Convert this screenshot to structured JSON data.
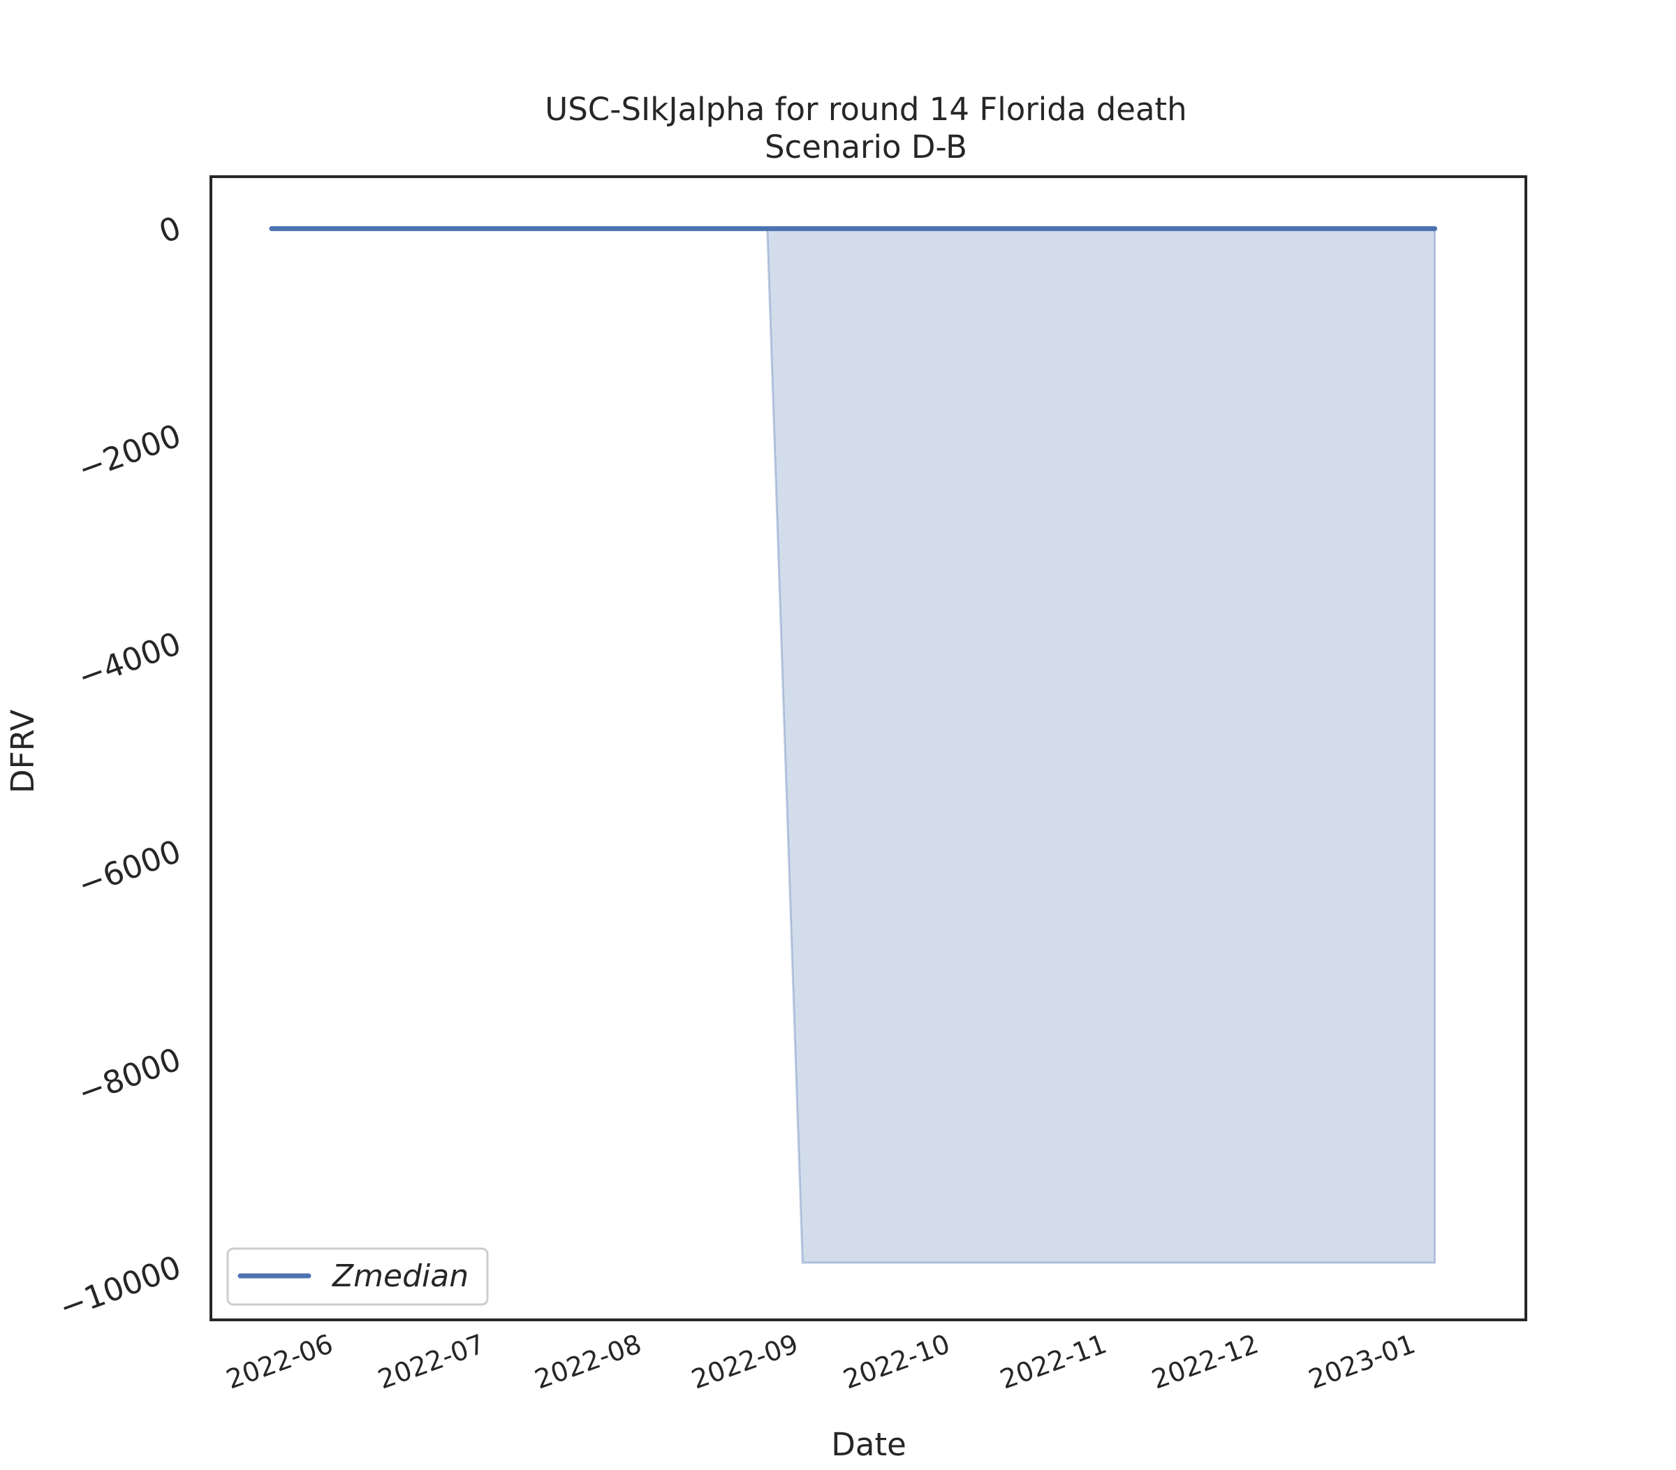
{
  "chart_data": {
    "type": "area",
    "title": "USC-SIkJalpha for round 14 Florida death",
    "subtitle": "Scenario D-B",
    "xlabel": "Date",
    "ylabel": "DFRV",
    "xlim": [
      "2022-05-10",
      "2023-01-25"
    ],
    "ylim": [
      -10500,
      500
    ],
    "x_ticks": [
      "2022-06",
      "2022-07",
      "2022-08",
      "2022-09",
      "2022-10",
      "2022-11",
      "2022-12",
      "2023-01"
    ],
    "x_tick_dates": [
      "2022-06-01",
      "2022-07-01",
      "2022-08-01",
      "2022-09-01",
      "2022-10-01",
      "2022-11-01",
      "2022-12-01",
      "2023-01-01"
    ],
    "y_ticks": [
      0,
      -2000,
      -4000,
      -6000,
      -8000,
      -10000
    ],
    "y_tick_labels": [
      "0",
      "−2000",
      "−4000",
      "−6000",
      "−8000",
      "−10000"
    ],
    "grid": false,
    "legend_position": "lower-left",
    "series": [
      {
        "name": "Zmedian",
        "kind": "line",
        "color": "#4c72b0",
        "x": [
          "2022-05-22",
          "2022-08-28",
          "2023-01-07"
        ],
        "y": [
          0,
          0,
          0
        ]
      }
    ],
    "band": {
      "color": "#4c72b0",
      "opacity": 0.25,
      "x": [
        "2022-08-28",
        "2022-09-04",
        "2023-01-07"
      ],
      "upper": [
        0,
        0,
        0
      ],
      "lower": [
        0,
        -9950,
        -9950
      ]
    }
  }
}
